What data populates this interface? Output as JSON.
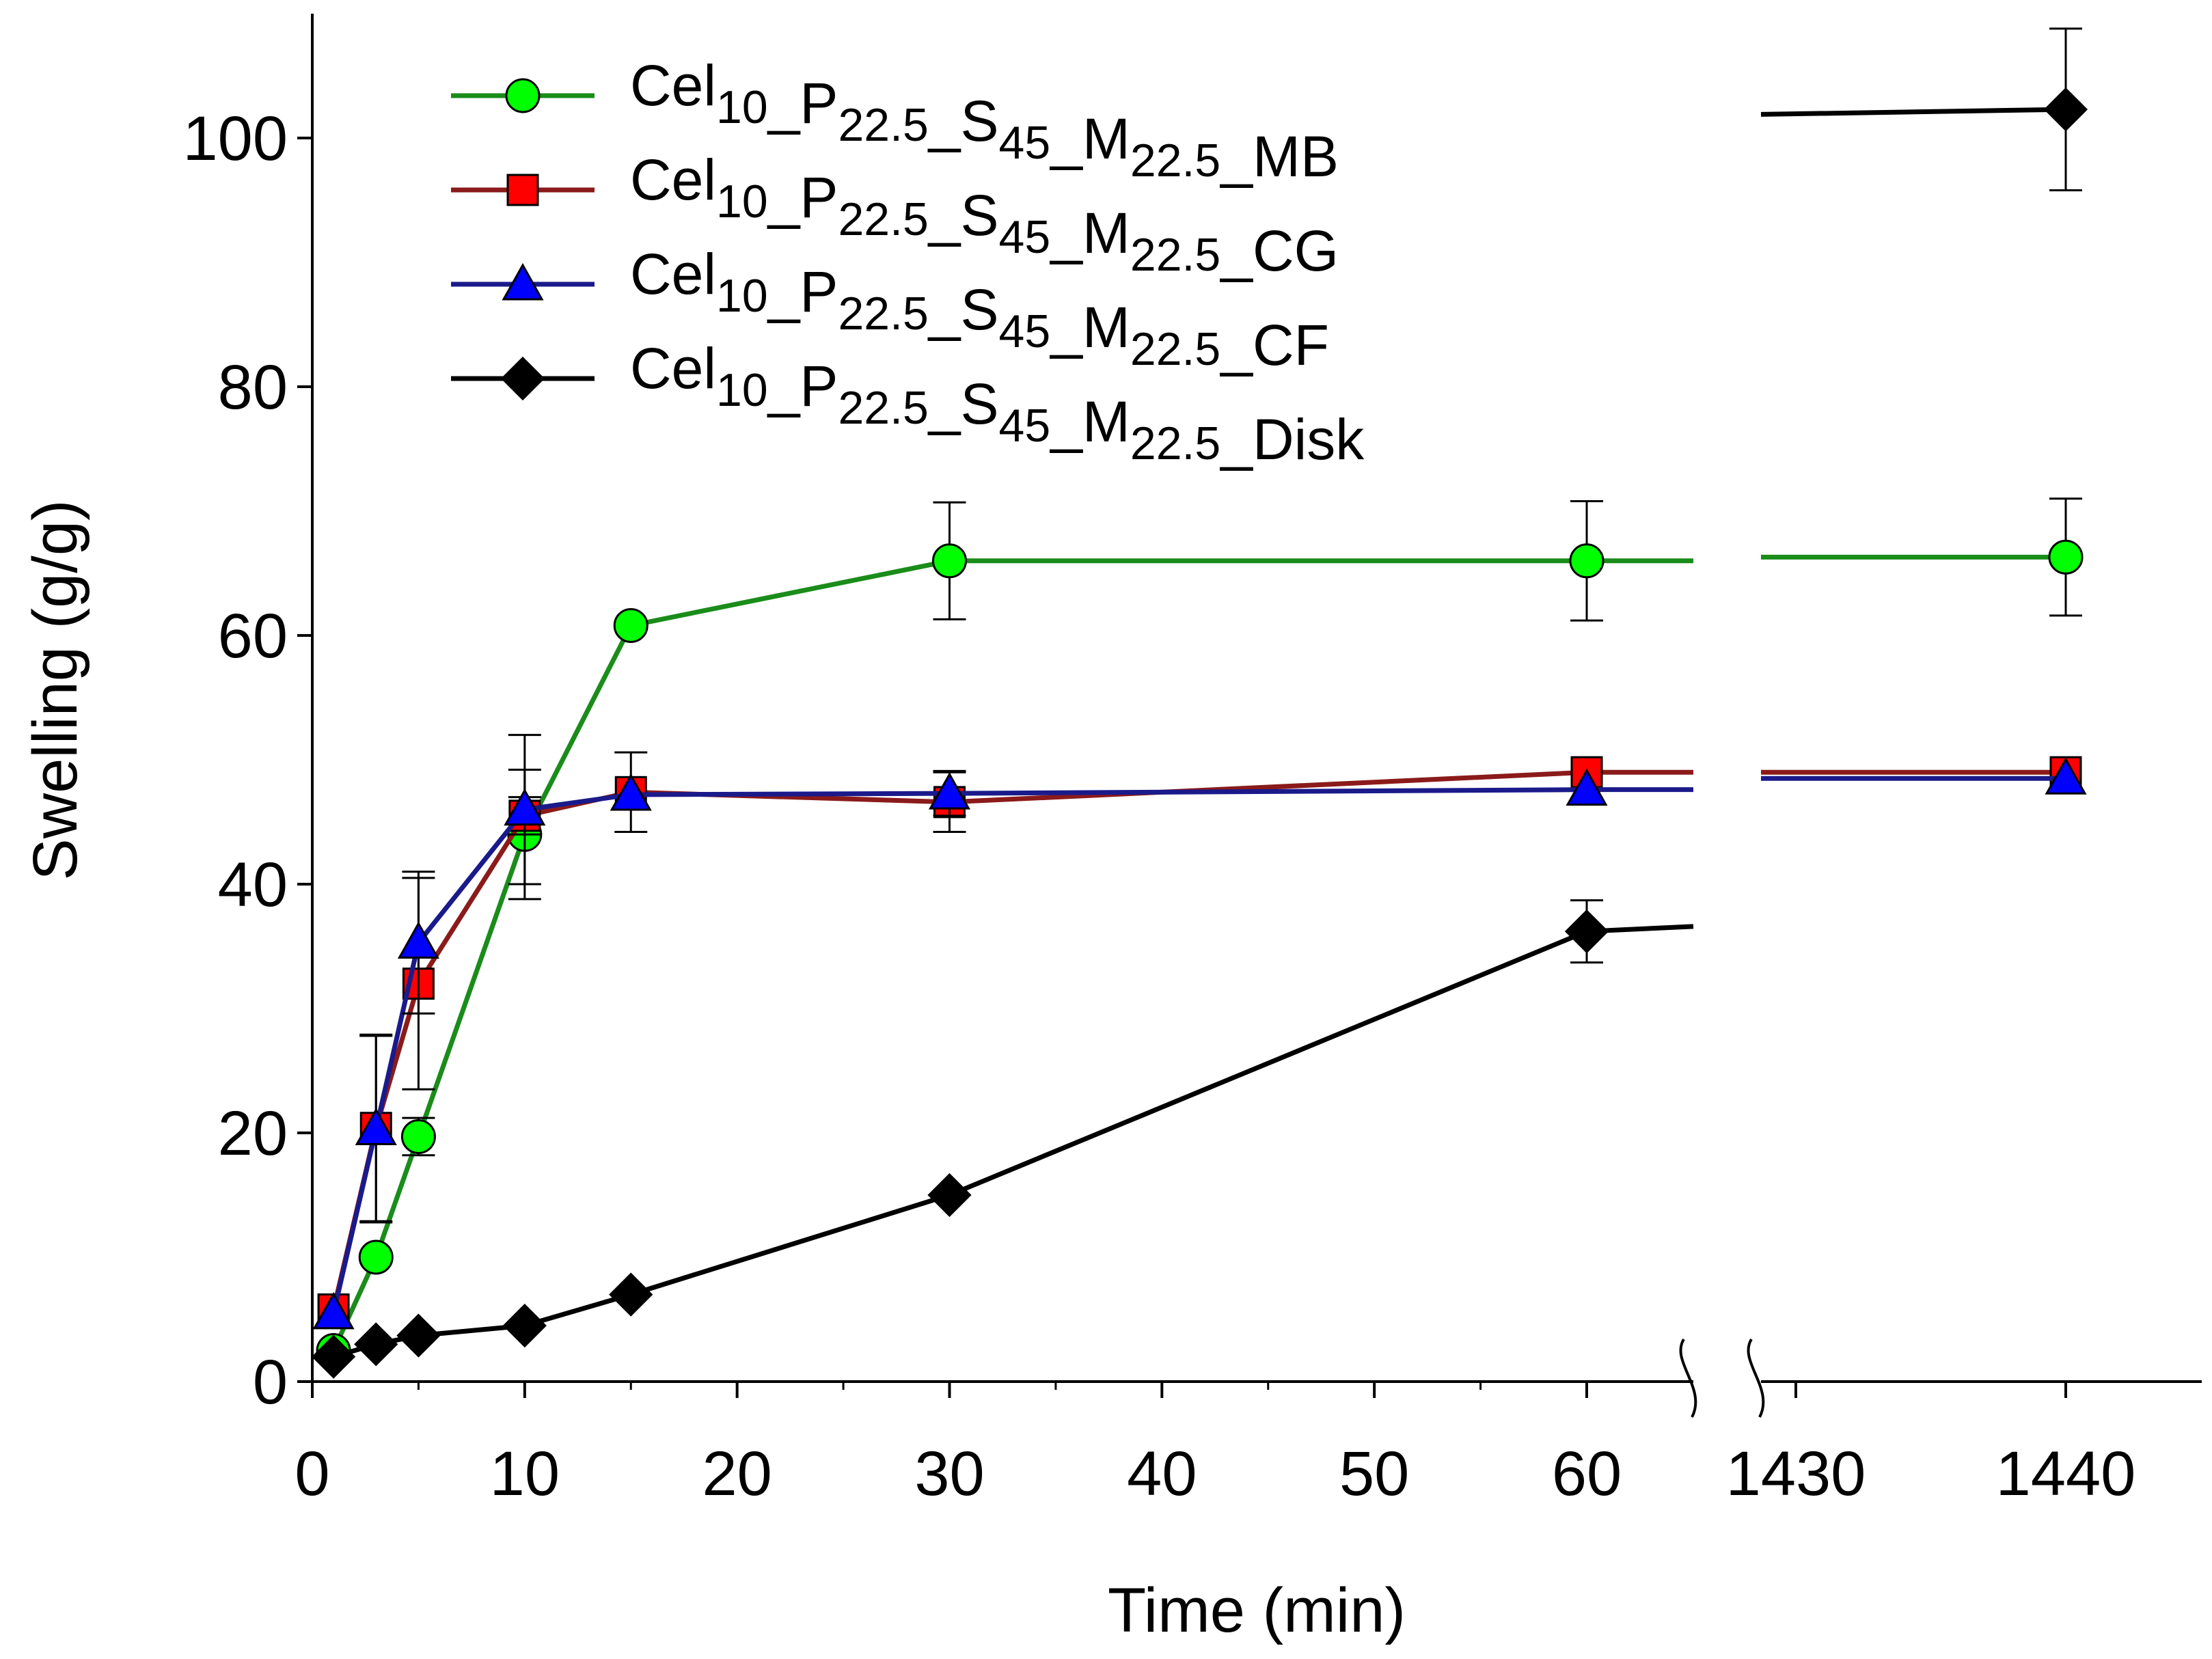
{
  "chart_data": {
    "type": "line",
    "title": "",
    "xlabel": "Time (min)",
    "ylabel": "Swelling (g/g)",
    "ylim": [
      0,
      110
    ],
    "yticks": [
      0,
      20,
      40,
      60,
      80,
      100
    ],
    "ytick_labels": [
      "0",
      "20",
      "40",
      "60",
      "80",
      "100"
    ],
    "axis_break": "between 60 and 1430",
    "x_segments": [
      {
        "range": [
          0,
          66.5
        ],
        "ticks": [
          0,
          10,
          20,
          30,
          40,
          50,
          60
        ],
        "tick_labels": [
          "0",
          "10",
          "20",
          "30",
          "40",
          "50",
          "60"
        ]
      },
      {
        "range": [
          1429,
          1446
        ],
        "ticks": [
          1430,
          1440
        ],
        "tick_labels": [
          "1430",
          "1440"
        ]
      }
    ],
    "series": [
      {
        "name": "MB",
        "legend": {
          "base": "Cel",
          "s1": "10",
          "p1": "_P",
          "s2": "22.5",
          "p2": "_S",
          "s3": "45",
          "p3": "_M",
          "s4": "22.5",
          "p4": "_MB"
        },
        "line_color": "#1a8c1a",
        "marker_fill": "#00ff00",
        "marker": "circle",
        "x": [
          1,
          3,
          5,
          10,
          15,
          30,
          60,
          1440
        ],
        "y": [
          2.5,
          10,
          19.7,
          44,
          60.8,
          66,
          66,
          66.3
        ],
        "err": [
          0,
          0,
          1.5,
          5.2,
          0,
          4.7,
          4.8,
          4.7
        ]
      },
      {
        "name": "CG",
        "legend": {
          "base": "Cel",
          "s1": "10",
          "p1": "_P",
          "s2": "22.5",
          "p2": "_S",
          "s3": "45",
          "p3": "_M",
          "s4": "22.5",
          "p4": "_CG"
        },
        "line_color": "#8b1a1a",
        "marker_fill": "#ff0000",
        "marker": "square",
        "x": [
          1,
          3,
          5,
          10,
          15,
          30,
          60,
          1440
        ],
        "y": [
          5.8,
          20.4,
          32,
          45.5,
          47.4,
          46.6,
          49,
          49
        ],
        "err": [
          0,
          7.5,
          8.5,
          1.5,
          3.2,
          2.4,
          0,
          0
        ]
      },
      {
        "name": "CF",
        "legend": {
          "base": "Cel",
          "s1": "10",
          "p1": "_P",
          "s2": "22.5",
          "p2": "_S",
          "s3": "45",
          "p3": "_M",
          "s4": "22.5",
          "p4": "_CF"
        },
        "line_color": "#1a1a8b",
        "marker_fill": "#0000ff",
        "marker": "triangle",
        "x": [
          1,
          3,
          5,
          10,
          15,
          30,
          60,
          1440
        ],
        "y": [
          5.5,
          20.3,
          35.3,
          46,
          47.2,
          47.3,
          47.6,
          48.5
        ],
        "err": [
          0,
          7.5,
          5.7,
          6,
          0,
          1.8,
          0,
          0
        ]
      },
      {
        "name": "Disk",
        "legend": {
          "base": "Cel",
          "s1": "10",
          "p1": "_P",
          "s2": "22.5",
          "p2": "_S",
          "s3": "45",
          "p3": "_M",
          "s4": "22.5",
          "p4": "_Disk"
        },
        "line_color": "#000000",
        "marker_fill": "#000000",
        "marker": "diamond",
        "x": [
          1,
          3,
          5,
          10,
          15,
          30,
          60,
          1440
        ],
        "y": [
          2,
          3,
          3.7,
          4.5,
          7,
          15,
          36.2,
          102.3
        ],
        "err": [
          0,
          0,
          0,
          0,
          0,
          0,
          2.5,
          6.5
        ]
      }
    ],
    "legend_position": "top-left"
  }
}
